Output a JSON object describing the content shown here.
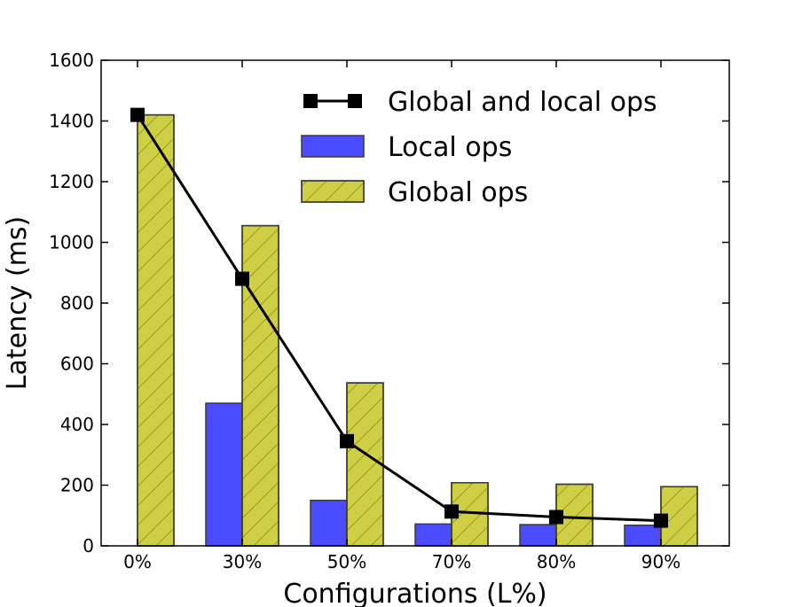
{
  "chart_data": {
    "type": "bar",
    "categories": [
      "0%",
      "30%",
      "50%",
      "70%",
      "80%",
      "90%"
    ],
    "series": [
      {
        "name": "Local ops",
        "kind": "bar",
        "color": "#4b4bff",
        "values": [
          0,
          470,
          150,
          72,
          70,
          68
        ]
      },
      {
        "name": "Global ops",
        "kind": "bar",
        "color": "#cfcf45",
        "hatch": true,
        "values": [
          1420,
          1055,
          537,
          208,
          203,
          195
        ]
      },
      {
        "name": "Global and local ops",
        "kind": "line",
        "color": "#000000",
        "values": [
          1420,
          880,
          345,
          113,
          95,
          83
        ]
      }
    ],
    "xlabel": "Configurations (L%)",
    "ylabel": "Latency (ms)",
    "ylim": [
      0,
      1600
    ],
    "yticks": [
      0,
      200,
      400,
      600,
      800,
      1000,
      1200,
      1400,
      1600
    ],
    "legend_position": "top-right",
    "grid": false
  }
}
